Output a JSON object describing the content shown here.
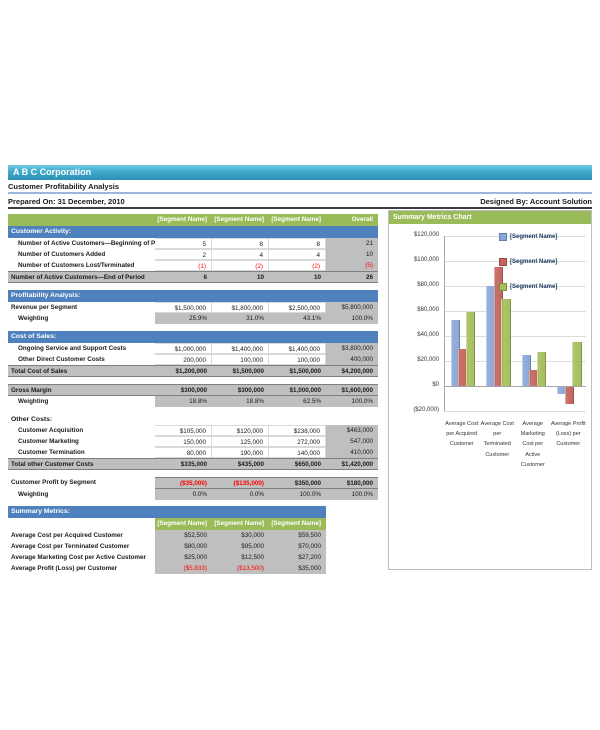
{
  "header": {
    "company": "A B C Corporation",
    "subtitle": "Customer Profitability Analysis",
    "prepared_on": "Prepared On: 31 December, 2010",
    "designed_by": "Designed By: Account Solution"
  },
  "colors": {
    "banner_teal": "#3fa8c9",
    "section_blue": "#4e81bd",
    "header_green": "#9abb59",
    "total_gray": "#bfbfbf",
    "negative_red": "#ff0000"
  },
  "main_table": {
    "columns": [
      "[Segment Name]",
      "[Segment Name]",
      "[Segment Name]",
      "Overall"
    ],
    "sections": [
      {
        "title": "Customer Activity:",
        "title_style": "blue",
        "rows": [
          {
            "label": "Number of Active Customers—Beginning of Period",
            "values": [
              "5",
              "8",
              "8",
              "21"
            ],
            "type": "detail",
            "indent": true
          },
          {
            "label": "Number of Customers Added",
            "values": [
              "2",
              "4",
              "4",
              "10"
            ],
            "type": "detail",
            "indent": true
          },
          {
            "label": "Number of Customers Lost/Terminated",
            "values": [
              "(1)",
              "(2)",
              "(2)",
              "(5)"
            ],
            "type": "detail",
            "indent": true
          },
          {
            "label": "Number of Active Customers—End of Period",
            "values": [
              "6",
              "10",
              "10",
              "26"
            ],
            "type": "total",
            "indent": false
          }
        ]
      },
      {
        "title": "Profitability Analysis:",
        "title_style": "blue",
        "rows": [
          {
            "label": "Revenue per Segment",
            "values": [
              "$1,500,000",
              "$1,800,000",
              "$2,500,000",
              "$5,800,000"
            ],
            "type": "detail",
            "indent": false
          },
          {
            "label": "Weighting",
            "values": [
              "25.9%",
              "31.0%",
              "43.1%",
              "100.0%"
            ],
            "type": "weight",
            "indent": true
          }
        ]
      },
      {
        "title": "Cost of Sales:",
        "title_style": "blue",
        "rows": [
          {
            "label": "Ongoing Service and Support Costs",
            "values": [
              "$1,000,000",
              "$1,400,000",
              "$1,400,000",
              "$3,800,000"
            ],
            "type": "detail",
            "indent": true
          },
          {
            "label": "Other Direct Customer Costs",
            "values": [
              "200,000",
              "100,000",
              "100,000",
              "400,000"
            ],
            "type": "detail",
            "indent": true
          },
          {
            "label": "Total Cost of Sales",
            "values": [
              "$1,200,000",
              "$1,500,000",
              "$1,500,000",
              "$4,200,000"
            ],
            "type": "total",
            "indent": false
          }
        ]
      },
      {
        "title": "",
        "title_style": "none",
        "rows": [
          {
            "label": "Gross Margin",
            "values": [
              "$300,000",
              "$300,000",
              "$1,000,000",
              "$1,600,000"
            ],
            "type": "total",
            "indent": false
          },
          {
            "label": "Weighting",
            "values": [
              "18.8%",
              "18.8%",
              "62.5%",
              "100.0%"
            ],
            "type": "weight",
            "indent": true
          }
        ]
      },
      {
        "title": "Other Costs:",
        "title_style": "plain",
        "rows": [
          {
            "label": "Customer Acquisition",
            "values": [
              "$105,000",
              "$120,000",
              "$238,000",
              "$463,000"
            ],
            "type": "detail",
            "indent": true
          },
          {
            "label": "Customer Marketing",
            "values": [
              "150,000",
              "125,000",
              "272,000",
              "547,000"
            ],
            "type": "detail",
            "indent": true
          },
          {
            "label": "Customer Termination",
            "values": [
              "80,000",
              "190,000",
              "140,000",
              "410,000"
            ],
            "type": "detail",
            "indent": true
          },
          {
            "label": "Total other Customer Costs",
            "values": [
              "$335,000",
              "$435,000",
              "$650,000",
              "$1,420,000"
            ],
            "type": "total",
            "indent": false
          }
        ]
      },
      {
        "title": "",
        "title_style": "none",
        "rows": [
          {
            "label": "Customer Profit by Segment",
            "values": [
              "($35,000)",
              "($135,000)",
              "$350,000",
              "$180,000"
            ],
            "type": "profit",
            "indent": false
          },
          {
            "label": "Weighting",
            "values": [
              "0.0%",
              "0.0%",
              "100.0%",
              "100.0%"
            ],
            "type": "weight",
            "indent": true
          }
        ]
      }
    ]
  },
  "summary_table": {
    "title": "Summary Metrics:",
    "columns": [
      "[Segment Name]",
      "[Segment Name]",
      "[Segment Name]"
    ],
    "rows": [
      {
        "label": "Average Cost per Acquired Customer",
        "values": [
          "$52,500",
          "$30,000",
          "$59,500"
        ]
      },
      {
        "label": "Average Cost per Terminated Customer",
        "values": [
          "$80,000",
          "$95,000",
          "$70,000"
        ]
      },
      {
        "label": "Average Marketing Cost per Active Customer",
        "values": [
          "$25,000",
          "$12,500",
          "$27,200"
        ]
      },
      {
        "label": "Average Profit (Loss) per Customer",
        "values": [
          "($5,833)",
          "($13,500)",
          "$35,000"
        ]
      }
    ]
  },
  "chart_data": {
    "type": "bar",
    "title": "Summary Metrics Chart",
    "categories": [
      "Average Cost per Acquired Customer",
      "Average Cost per Terminated Customer",
      "Average Marketing Cost per Active Customer",
      "Average Profit (Loss) per Customer"
    ],
    "series": [
      {
        "name": "[Segment Name]",
        "color": "#8ba7d8",
        "values": [
          52500,
          80000,
          25000,
          -5833
        ]
      },
      {
        "name": "[Segment Name]",
        "color": "#c4655d",
        "values": [
          30000,
          95000,
          12500,
          -13500
        ]
      },
      {
        "name": "[Segment Name]",
        "color": "#a6bf5d",
        "values": [
          59500,
          70000,
          27200,
          35000
        ]
      }
    ],
    "ylim": [
      -20000,
      120000
    ],
    "ytick_labels": [
      "$120,000",
      "$100,000",
      "$80,000",
      "$60,000",
      "$40,000",
      "$20,000",
      "$0",
      "($20,000)"
    ],
    "legend_position": "top-right",
    "grid": true
  }
}
